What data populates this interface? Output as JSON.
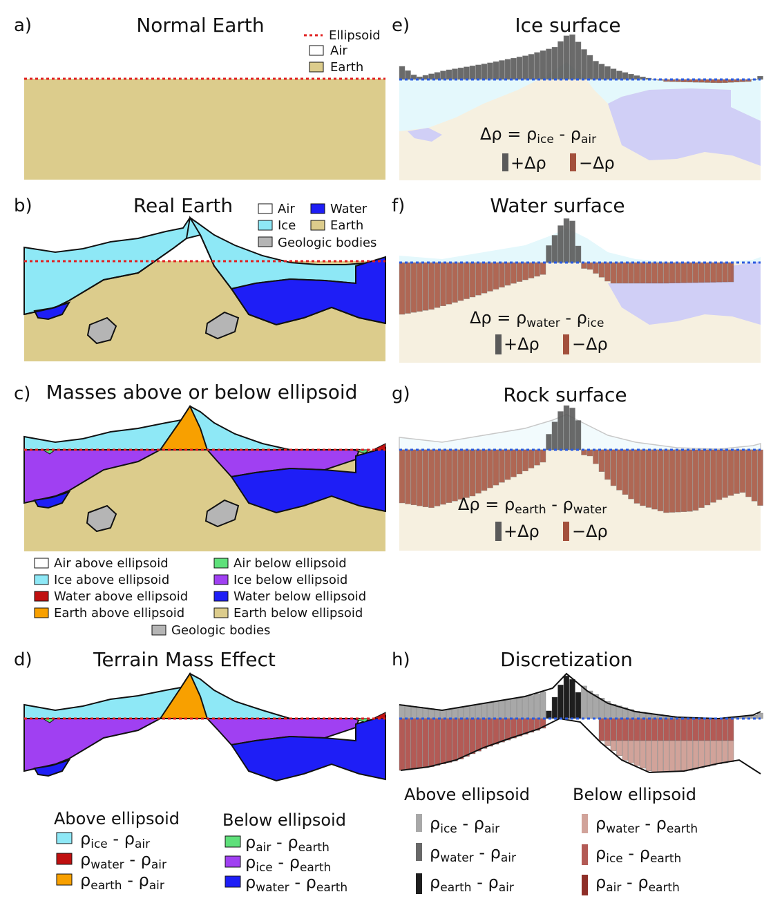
{
  "panels": {
    "a": {
      "letter": "a)",
      "title": "Normal Earth",
      "legend": {
        "ellipsoid": "Ellipsoid",
        "air": "Air",
        "earth": "Earth"
      }
    },
    "b": {
      "letter": "b)",
      "title": "Real Earth",
      "legend": {
        "air": "Air",
        "ice": "Ice",
        "water": "Water",
        "earth": "Earth",
        "geologic": "Geologic bodies"
      }
    },
    "c": {
      "letter": "c)",
      "title": "Masses above or below ellipsoid",
      "legend": [
        "Air above ellipsoid",
        "Ice above ellipsoid",
        "Water above ellipsoid",
        "Earth above ellipsoid",
        "Air below ellipsoid",
        "Ice below ellipsoid",
        "Water below ellipsoid",
        "Earth below ellipsoid",
        "Geologic bodies"
      ]
    },
    "d": {
      "letter": "d)",
      "title": "Terrain Mass Effect",
      "above_header": "Above ellipsoid",
      "below_header": "Below ellipsoid",
      "above": [
        {
          "a": "ice",
          "b": "air"
        },
        {
          "a": "water",
          "b": "air"
        },
        {
          "a": "earth",
          "b": "air"
        }
      ],
      "below": [
        {
          "a": "air",
          "b": "earth"
        },
        {
          "a": "ice",
          "b": "earth"
        },
        {
          "a": "water",
          "b": "earth"
        }
      ]
    },
    "e": {
      "letter": "e)",
      "title": "Ice surface",
      "eq_a": "ice",
      "eq_b": "air",
      "pos": "+Δρ",
      "neg": "−Δρ"
    },
    "f": {
      "letter": "f)",
      "title": "Water surface",
      "eq_a": "water",
      "eq_b": "ice",
      "pos": "+Δρ",
      "neg": "−Δρ"
    },
    "g": {
      "letter": "g)",
      "title": "Rock surface",
      "eq_a": "earth",
      "eq_b": "water",
      "pos": "+Δρ",
      "neg": "−Δρ"
    },
    "h": {
      "letter": "h)",
      "title": "Discretization",
      "above_header": "Above ellipsoid",
      "below_header": "Below ellipsoid",
      "above": [
        {
          "a": "ice",
          "b": "air"
        },
        {
          "a": "water",
          "b": "air"
        },
        {
          "a": "earth",
          "b": "air"
        }
      ],
      "below": [
        {
          "a": "water",
          "b": "earth"
        },
        {
          "a": "ice",
          "b": "earth"
        },
        {
          "a": "air",
          "b": "earth"
        }
      ]
    }
  },
  "symbols": {
    "rho": "ρ",
    "delta_rho": "Δρ",
    "equals": "=",
    "minus": "-"
  },
  "colors": {
    "earth": "#dccc8c",
    "ice": "#8ee8f6",
    "water": "#1e1ef6",
    "geologic": "#b5b5b5",
    "ellipsoid_red": "#e02020",
    "ellipsoid_blue": "#2a5be0",
    "air_below": "#5ee07a",
    "ice_below": "#a040f2",
    "water_above": "#c01010",
    "earth_above": "#f8a000",
    "pos_bar": "#5a5a5a",
    "neg_bar": "#a3503c"
  }
}
